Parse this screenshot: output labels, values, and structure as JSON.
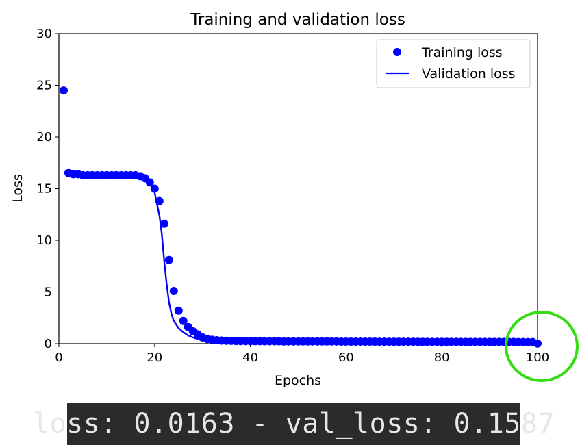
{
  "chart_data": {
    "type": "line",
    "title": "Training and validation loss",
    "xlabel": "Epochs",
    "ylabel": "Loss",
    "xlim": [
      0,
      100
    ],
    "ylim": [
      0,
      30
    ],
    "x_ticks": [
      0,
      20,
      40,
      60,
      80,
      100
    ],
    "y_ticks": [
      0,
      5,
      10,
      15,
      20,
      25,
      30
    ],
    "legend_position": "top-right",
    "grid": false,
    "series": [
      {
        "name": "Training loss",
        "style": "markers",
        "color": "#0000ff",
        "x": [
          1,
          2,
          3,
          4,
          5,
          6,
          7,
          8,
          9,
          10,
          11,
          12,
          13,
          14,
          15,
          16,
          17,
          18,
          19,
          20,
          21,
          22,
          23,
          24,
          25,
          26,
          27,
          28,
          29,
          30,
          31,
          32,
          33,
          34,
          35,
          36,
          37,
          38,
          39,
          40,
          41,
          42,
          43,
          44,
          45,
          46,
          47,
          48,
          49,
          50,
          51,
          52,
          53,
          54,
          55,
          56,
          57,
          58,
          59,
          60,
          61,
          62,
          63,
          64,
          65,
          66,
          67,
          68,
          69,
          70,
          71,
          72,
          73,
          74,
          75,
          76,
          77,
          78,
          79,
          80,
          81,
          82,
          83,
          84,
          85,
          86,
          87,
          88,
          89,
          90,
          91,
          92,
          93,
          94,
          95,
          96,
          97,
          98,
          99,
          100
        ],
        "y": [
          24.5,
          16.5,
          16.4,
          16.4,
          16.3,
          16.3,
          16.3,
          16.3,
          16.3,
          16.3,
          16.3,
          16.3,
          16.3,
          16.3,
          16.3,
          16.3,
          16.2,
          16.0,
          15.6,
          15.0,
          13.8,
          11.6,
          8.1,
          5.1,
          3.2,
          2.2,
          1.6,
          1.2,
          0.9,
          0.6,
          0.45,
          0.38,
          0.33,
          0.3,
          0.28,
          0.27,
          0.26,
          0.25,
          0.25,
          0.24,
          0.24,
          0.24,
          0.23,
          0.23,
          0.23,
          0.23,
          0.22,
          0.22,
          0.22,
          0.22,
          0.22,
          0.22,
          0.21,
          0.21,
          0.21,
          0.21,
          0.21,
          0.21,
          0.2,
          0.2,
          0.2,
          0.2,
          0.2,
          0.2,
          0.2,
          0.2,
          0.19,
          0.19,
          0.19,
          0.19,
          0.19,
          0.19,
          0.19,
          0.19,
          0.18,
          0.18,
          0.18,
          0.18,
          0.18,
          0.18,
          0.18,
          0.18,
          0.18,
          0.17,
          0.17,
          0.17,
          0.17,
          0.17,
          0.17,
          0.17,
          0.17,
          0.17,
          0.17,
          0.17,
          0.17,
          0.16,
          0.16,
          0.16,
          0.16,
          0.0163
        ]
      },
      {
        "name": "Validation loss",
        "style": "line",
        "color": "#0000ff",
        "x": [
          1,
          2,
          3,
          5,
          8,
          12,
          16,
          18,
          19,
          20,
          21,
          21.5,
          22,
          22.5,
          23,
          23.5,
          24,
          25,
          26,
          27,
          28,
          29,
          30,
          32,
          35,
          40,
          50,
          60,
          70,
          80,
          90,
          100
        ],
        "y": [
          16.6,
          16.5,
          16.4,
          16.3,
          16.2,
          16.2,
          16.2,
          16.0,
          15.5,
          14.6,
          12.4,
          10.6,
          8.0,
          5.8,
          4.0,
          2.9,
          2.2,
          1.5,
          1.1,
          0.8,
          0.6,
          0.45,
          0.35,
          0.28,
          0.24,
          0.22,
          0.2,
          0.19,
          0.18,
          0.17,
          0.16,
          0.1587
        ]
      }
    ]
  },
  "highlight_color": "#33dd11",
  "console": {
    "text": "loss: 0.0163 - val_loss: 0.1587",
    "background": "#2b2b2b",
    "text_color": "#e6e6e6"
  }
}
